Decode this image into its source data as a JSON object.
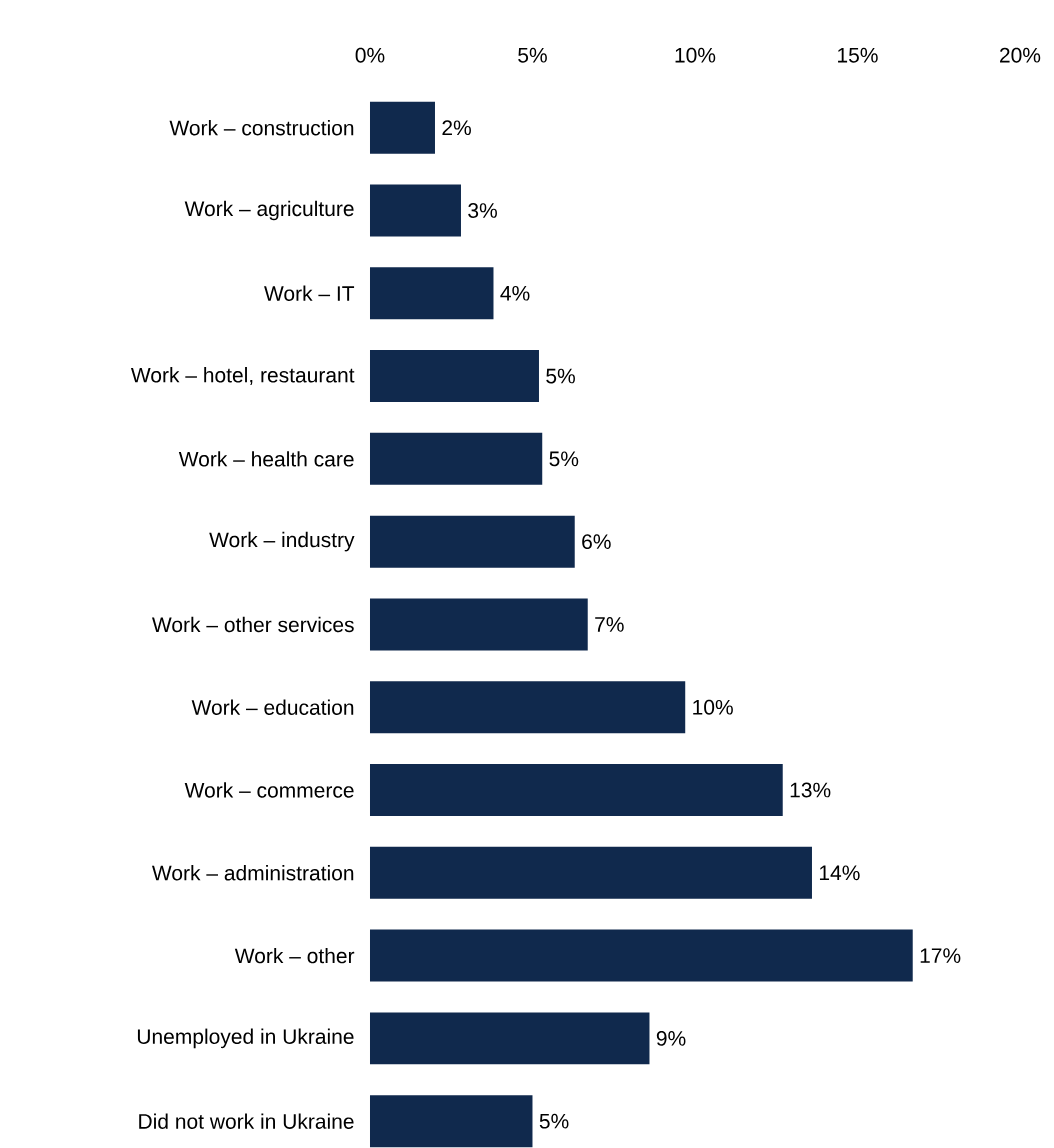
{
  "chart_data": {
    "type": "bar",
    "orientation": "horizontal",
    "color": "#10294d",
    "categories": [
      "Work – construction",
      "Work – agriculture",
      "Work – IT",
      "Work – hotel, restaurant",
      "Work – health care",
      "Work – industry",
      "Work – other services",
      "Work – education",
      "Work – commerce",
      "Work – administration",
      "Work – other",
      "Unemployed in Ukraine",
      "Did not work in Ukraine"
    ],
    "values": [
      2.0,
      2.8,
      3.8,
      5.2,
      5.3,
      6.3,
      6.7,
      9.7,
      12.7,
      13.6,
      16.7,
      8.6,
      5.0
    ],
    "value_labels": [
      "2%",
      "3%",
      "4%",
      "5%",
      "5%",
      "6%",
      "7%",
      "10%",
      "13%",
      "14%",
      "17%",
      "9%",
      "5%"
    ],
    "xlim": [
      0,
      20
    ],
    "xticks": [
      {
        "value": 0,
        "label": "0%"
      },
      {
        "value": 5,
        "label": "5%"
      },
      {
        "value": 10,
        "label": "10%"
      },
      {
        "value": 15,
        "label": "15%"
      },
      {
        "value": 20,
        "label": "20%"
      }
    ]
  }
}
